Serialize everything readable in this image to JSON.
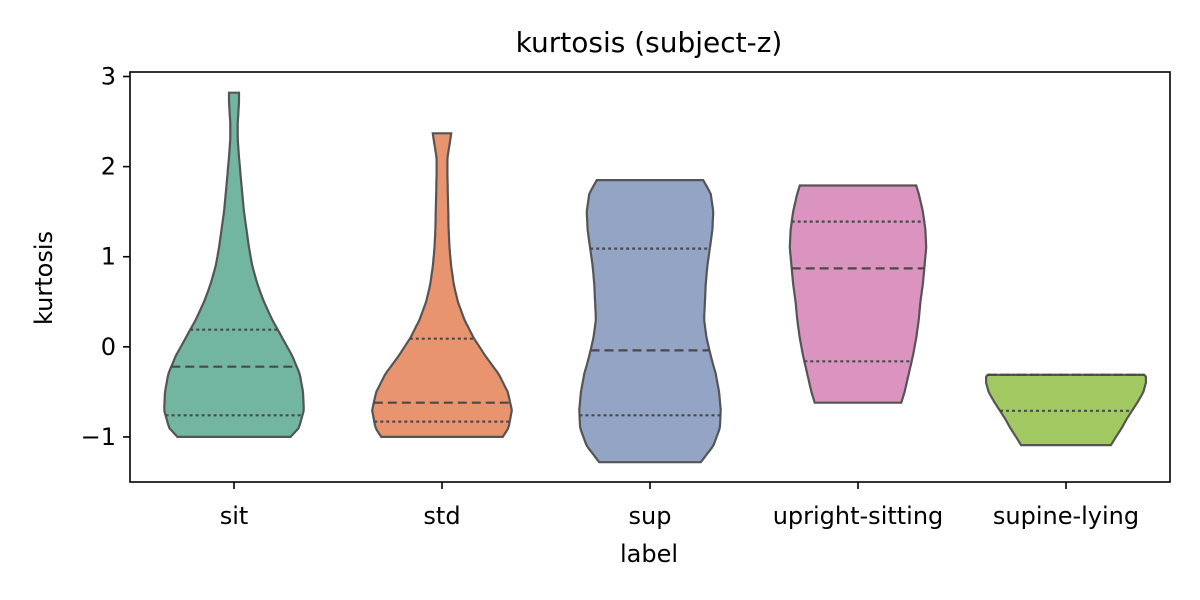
{
  "chart_data": {
    "type": "violin",
    "title": "kurtosis (subject-z)",
    "xlabel": "label",
    "ylabel": "kurtosis",
    "categories": [
      "sit",
      "std",
      "sup",
      "upright-sitting",
      "supine-lying"
    ],
    "ylim": [
      -1.5,
      3.05
    ],
    "yticks": [
      -1,
      0,
      1,
      2,
      3
    ],
    "ytick_labels": [
      "−1",
      "0",
      "1",
      "2",
      "3"
    ],
    "grid": false,
    "series": [
      {
        "category": "sit",
        "color": "#72b5a0",
        "min": -1.0,
        "max": 2.82,
        "q1": -0.76,
        "median": -0.22,
        "q3": 0.19,
        "profile": [
          [
            -1.0,
            0.68
          ],
          [
            -0.9,
            0.78
          ],
          [
            -0.7,
            0.84
          ],
          [
            -0.5,
            0.83
          ],
          [
            -0.3,
            0.79
          ],
          [
            -0.1,
            0.7
          ],
          [
            0.1,
            0.58
          ],
          [
            0.3,
            0.46
          ],
          [
            0.5,
            0.36
          ],
          [
            0.7,
            0.28
          ],
          [
            0.9,
            0.22
          ],
          [
            1.1,
            0.18
          ],
          [
            1.3,
            0.15
          ],
          [
            1.5,
            0.12
          ],
          [
            1.7,
            0.1
          ],
          [
            1.9,
            0.08
          ],
          [
            2.1,
            0.06
          ],
          [
            2.3,
            0.045
          ],
          [
            2.5,
            0.045
          ],
          [
            2.7,
            0.06
          ],
          [
            2.82,
            0.06
          ]
        ]
      },
      {
        "category": "std",
        "color": "#e8956f",
        "min": -1.0,
        "max": 2.37,
        "q1": -0.83,
        "median": -0.62,
        "q3": 0.09,
        "profile": [
          [
            -1.0,
            0.73
          ],
          [
            -0.9,
            0.8
          ],
          [
            -0.7,
            0.84
          ],
          [
            -0.5,
            0.79
          ],
          [
            -0.3,
            0.68
          ],
          [
            -0.1,
            0.52
          ],
          [
            0.1,
            0.38
          ],
          [
            0.3,
            0.27
          ],
          [
            0.5,
            0.19
          ],
          [
            0.7,
            0.14
          ],
          [
            0.9,
            0.11
          ],
          [
            1.1,
            0.09
          ],
          [
            1.3,
            0.08
          ],
          [
            1.5,
            0.075
          ],
          [
            1.7,
            0.07
          ],
          [
            1.9,
            0.065
          ],
          [
            2.1,
            0.065
          ],
          [
            2.3,
            0.1
          ],
          [
            2.37,
            0.11
          ]
        ]
      },
      {
        "category": "sup",
        "color": "#94a4c4",
        "min": -1.28,
        "max": 1.85,
        "q1": -0.76,
        "median": -0.04,
        "q3": 1.09,
        "profile": [
          [
            -1.28,
            0.61
          ],
          [
            -1.1,
            0.76
          ],
          [
            -0.9,
            0.84
          ],
          [
            -0.7,
            0.85
          ],
          [
            -0.5,
            0.83
          ],
          [
            -0.3,
            0.79
          ],
          [
            -0.1,
            0.73
          ],
          [
            0.1,
            0.68
          ],
          [
            0.3,
            0.65
          ],
          [
            0.5,
            0.66
          ],
          [
            0.7,
            0.67
          ],
          [
            0.9,
            0.69
          ],
          [
            1.1,
            0.72
          ],
          [
            1.3,
            0.75
          ],
          [
            1.5,
            0.76
          ],
          [
            1.7,
            0.73
          ],
          [
            1.85,
            0.64
          ]
        ]
      },
      {
        "category": "upright-sitting",
        "color": "#db93bf",
        "min": -0.62,
        "max": 1.79,
        "q1": -0.16,
        "median": 0.87,
        "q3": 1.39,
        "profile": [
          [
            -0.62,
            0.52
          ],
          [
            -0.5,
            0.56
          ],
          [
            -0.3,
            0.61
          ],
          [
            -0.1,
            0.66
          ],
          [
            0.1,
            0.7
          ],
          [
            0.3,
            0.73
          ],
          [
            0.5,
            0.75
          ],
          [
            0.7,
            0.78
          ],
          [
            0.9,
            0.8
          ],
          [
            1.1,
            0.82
          ],
          [
            1.3,
            0.81
          ],
          [
            1.5,
            0.78
          ],
          [
            1.7,
            0.73
          ],
          [
            1.79,
            0.7
          ]
        ]
      },
      {
        "category": "supine-lying",
        "color": "#a2c961",
        "min": -1.09,
        "max": -0.31,
        "q1": -0.71,
        "median": -0.31,
        "q3": -0.31,
        "profile": [
          [
            -1.09,
            0.54
          ],
          [
            -1.0,
            0.6
          ],
          [
            -0.9,
            0.67
          ],
          [
            -0.8,
            0.73
          ],
          [
            -0.7,
            0.8
          ],
          [
            -0.6,
            0.87
          ],
          [
            -0.5,
            0.93
          ],
          [
            -0.4,
            0.96
          ],
          [
            -0.33,
            0.96
          ],
          [
            -0.31,
            0.94
          ]
        ]
      }
    ]
  }
}
